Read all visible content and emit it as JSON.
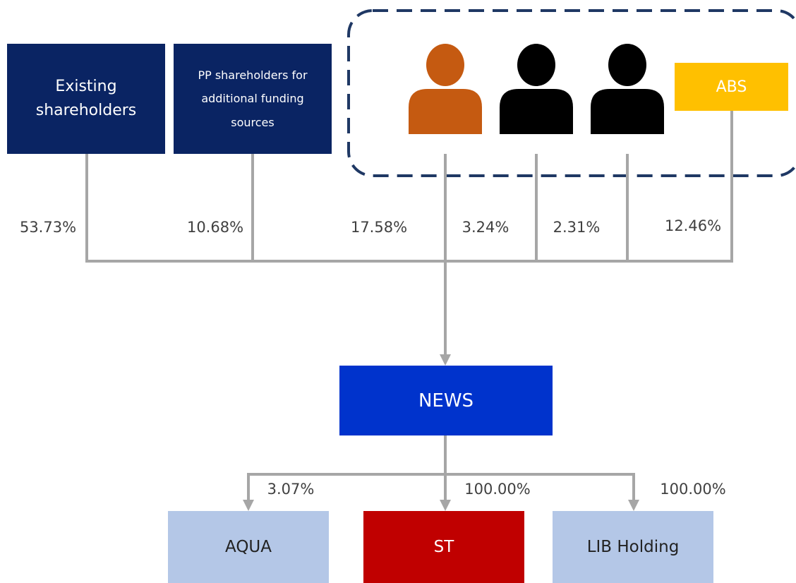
{
  "nodes": [
    {
      "label": "Existing shareholders"
    },
    {
      "label": "PP shareholders for additional funding sources"
    },
    {
      "label": "ABS"
    },
    {
      "label": "NEWS"
    },
    {
      "label": "AQUA"
    },
    {
      "label": "ST"
    },
    {
      "label": "LIB Holding"
    }
  ],
  "edges": [
    {
      "label": "53.73%"
    },
    {
      "label": "10.68%"
    },
    {
      "label": "17.58%"
    },
    {
      "label": "3.24%"
    },
    {
      "label": "2.31%"
    },
    {
      "label": "12.46%"
    },
    {
      "label": "3.07%"
    },
    {
      "label": "100.00%"
    },
    {
      "label": "100.00%"
    }
  ]
}
